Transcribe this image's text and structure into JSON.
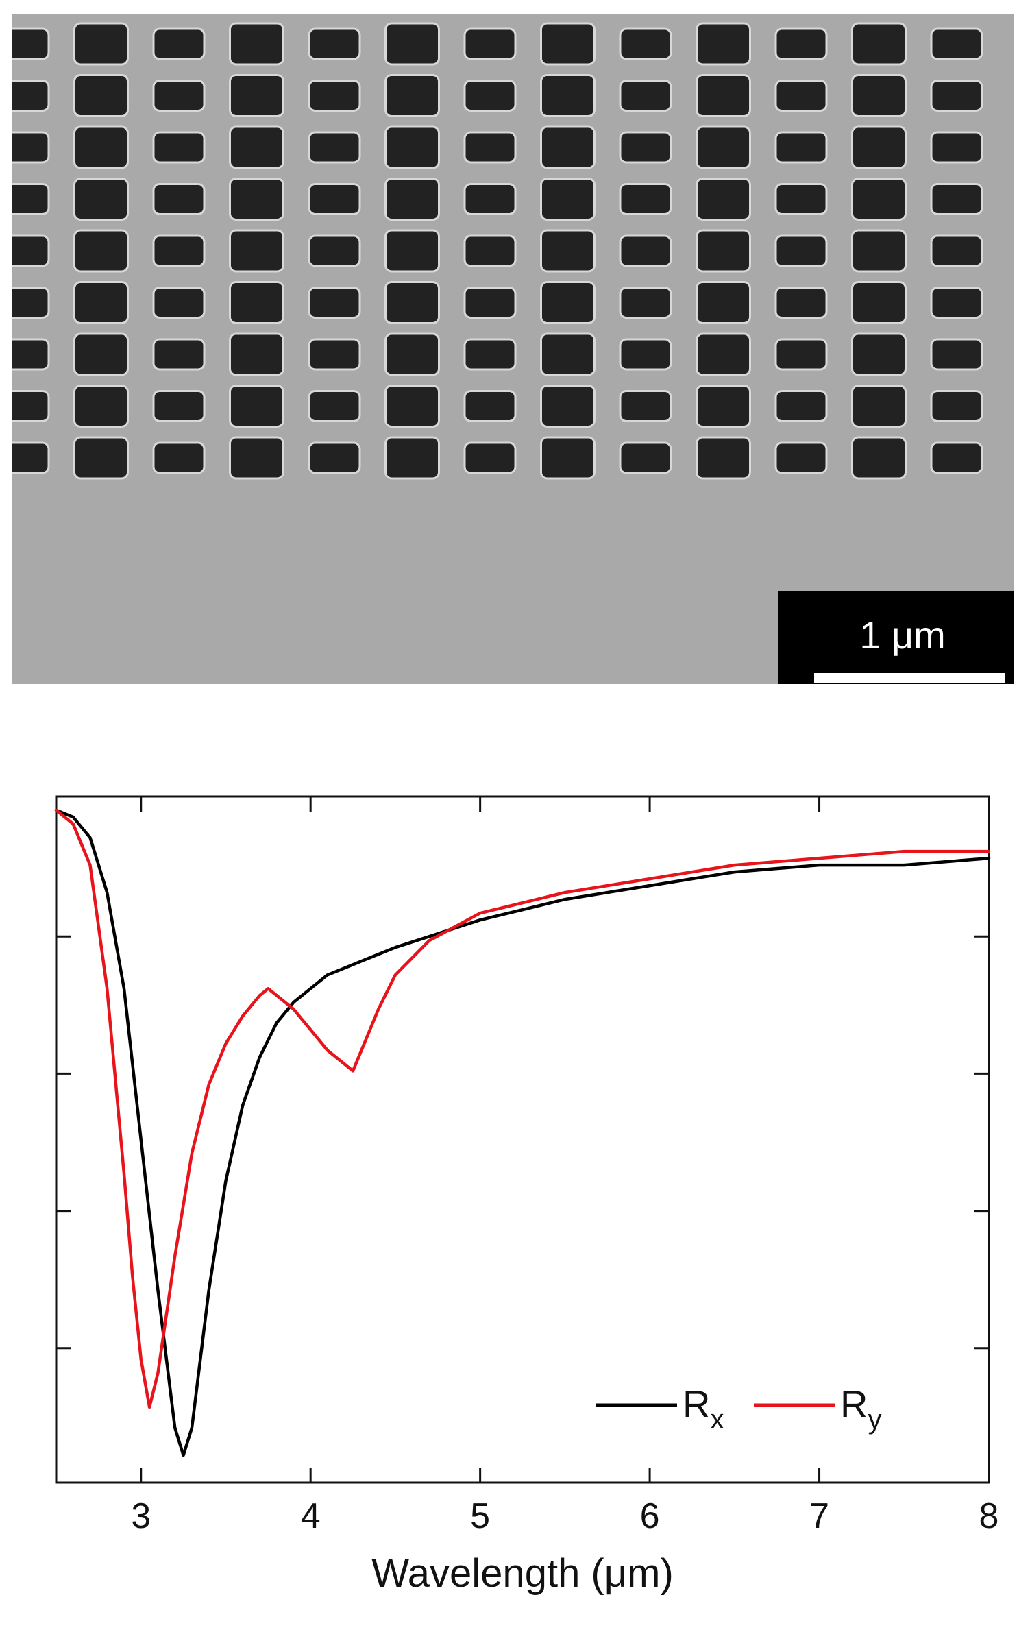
{
  "micrograph": {
    "scale_bar_label": "1 μm",
    "hole_rows": 9,
    "hole_columns": 13,
    "background_color": "#a9a9a9",
    "hole_color": "#222222"
  },
  "chart_data": {
    "type": "line",
    "title": "",
    "xlabel": "Wavelength (μm)",
    "ylabel": "",
    "xlim": [
      2.5,
      8
    ],
    "ylim": [
      0,
      1
    ],
    "xticks": [
      "3",
      "4",
      "5",
      "6",
      "7",
      "8"
    ],
    "y_ticks_labeled": false,
    "grid": false,
    "legend_position": "bottom-right",
    "series": [
      {
        "name": "R",
        "name_subscript": "x",
        "color": "#000000",
        "x": [
          2.5,
          2.6,
          2.7,
          2.8,
          2.9,
          3.0,
          3.1,
          3.2,
          3.25,
          3.3,
          3.4,
          3.5,
          3.6,
          3.7,
          3.8,
          3.9,
          4.0,
          4.1,
          4.2,
          4.3,
          4.5,
          5.0,
          5.5,
          6.0,
          6.5,
          7.0,
          7.5,
          8.0
        ],
        "y": [
          0.98,
          0.97,
          0.94,
          0.86,
          0.72,
          0.5,
          0.28,
          0.08,
          0.04,
          0.08,
          0.28,
          0.44,
          0.55,
          0.62,
          0.67,
          0.7,
          0.72,
          0.74,
          0.75,
          0.76,
          0.78,
          0.82,
          0.85,
          0.87,
          0.89,
          0.9,
          0.9,
          0.91
        ]
      },
      {
        "name": "R",
        "name_subscript": "y",
        "color": "#e8141c",
        "x": [
          2.5,
          2.6,
          2.7,
          2.8,
          2.9,
          2.95,
          3.0,
          3.05,
          3.1,
          3.2,
          3.3,
          3.4,
          3.5,
          3.6,
          3.7,
          3.75,
          3.8,
          3.9,
          4.0,
          4.1,
          4.2,
          4.25,
          4.3,
          4.4,
          4.5,
          4.7,
          5.0,
          5.5,
          6.0,
          6.5,
          7.0,
          7.5,
          8.0
        ],
        "y": [
          0.98,
          0.96,
          0.9,
          0.72,
          0.45,
          0.3,
          0.18,
          0.11,
          0.16,
          0.33,
          0.48,
          0.58,
          0.64,
          0.68,
          0.71,
          0.72,
          0.71,
          0.69,
          0.66,
          0.63,
          0.61,
          0.6,
          0.63,
          0.69,
          0.74,
          0.79,
          0.83,
          0.86,
          0.88,
          0.9,
          0.91,
          0.92,
          0.92
        ]
      }
    ]
  }
}
